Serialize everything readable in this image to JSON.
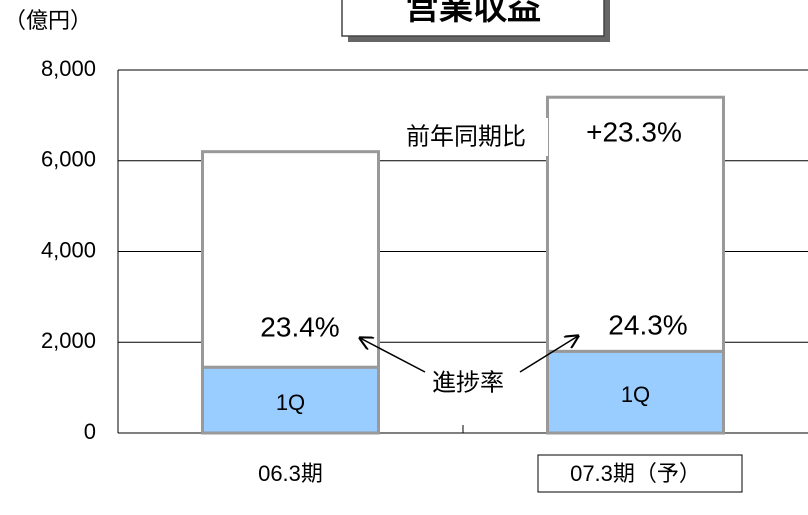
{
  "chart_data": {
    "type": "stacked_bar",
    "title": "営業収益",
    "y_unit": "（億円）",
    "categories": [
      "06.3期",
      "07.3期（予）"
    ],
    "series": [
      {
        "name": "1Q",
        "color": "#99ccff",
        "values": [
          1450,
          1800
        ]
      },
      {
        "color": "#ffffff",
        "values": [
          4750,
          5600
        ]
      }
    ],
    "ylim": [
      0,
      8000
    ],
    "yticks": [
      0,
      {
        "value": 2000,
        "label": "2,000"
      },
      {
        "value": 4000,
        "label": "4,000"
      },
      {
        "value": 6000,
        "label": "6,000"
      },
      {
        "value": 8000,
        "label": "8,000"
      }
    ],
    "grid": true,
    "progress_labels": [
      "23.4%",
      "24.3%"
    ],
    "progress_title": "進捗率",
    "yoy_title": "前年同期比",
    "yoy_value": "+23.3%"
  }
}
